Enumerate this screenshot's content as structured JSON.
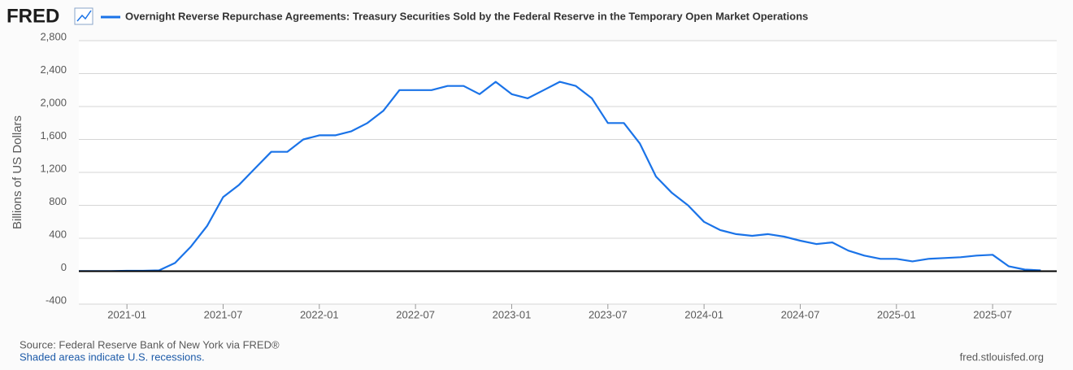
{
  "logo": "FRED",
  "chart_data": {
    "type": "line",
    "series": [
      {
        "name": "Overnight Reverse Repurchase Agreements: Treasury Securities Sold by the Federal Reserve in the Temporary Open Market Operations",
        "color": "#1a73e8",
        "x": [
          "2020-10",
          "2020-11",
          "2020-12",
          "2021-01",
          "2021-02",
          "2021-03",
          "2021-04",
          "2021-05",
          "2021-06",
          "2021-07",
          "2021-08",
          "2021-09",
          "2021-10",
          "2021-11",
          "2021-12",
          "2022-01",
          "2022-02",
          "2022-03",
          "2022-04",
          "2022-05",
          "2022-06",
          "2022-07",
          "2022-08",
          "2022-09",
          "2022-10",
          "2022-11",
          "2022-12",
          "2023-01",
          "2023-02",
          "2023-03",
          "2023-04",
          "2023-05",
          "2023-06",
          "2023-07",
          "2023-08",
          "2023-09",
          "2023-10",
          "2023-11",
          "2023-12",
          "2024-01",
          "2024-02",
          "2024-03",
          "2024-04",
          "2024-05",
          "2024-06",
          "2024-07",
          "2024-08",
          "2024-09",
          "2024-10",
          "2024-11",
          "2024-12",
          "2025-01",
          "2025-02",
          "2025-03",
          "2025-04",
          "2025-05",
          "2025-06",
          "2025-07",
          "2025-08",
          "2025-09",
          "2025-10"
        ],
        "values": [
          1,
          1,
          2,
          5,
          5,
          10,
          100,
          300,
          550,
          900,
          1050,
          1250,
          1450,
          1450,
          1600,
          1650,
          1650,
          1700,
          1800,
          1950,
          2200,
          2200,
          2200,
          2250,
          2250,
          2150,
          2300,
          2150,
          2100,
          2200,
          2300,
          2250,
          2100,
          1800,
          1800,
          1550,
          1150,
          950,
          800,
          600,
          500,
          450,
          430,
          450,
          420,
          370,
          330,
          350,
          250,
          190,
          150,
          150,
          120,
          150,
          160,
          170,
          190,
          200,
          60,
          20,
          10
        ]
      }
    ],
    "xlim": [
      "2020-10",
      "2025-11"
    ],
    "xticks": [
      "2021-01",
      "2021-07",
      "2022-01",
      "2022-07",
      "2023-01",
      "2023-07",
      "2024-01",
      "2024-07",
      "2025-01",
      "2025-07"
    ],
    "ylim": [
      -400,
      2800
    ],
    "yticks": [
      -400,
      0,
      {
        "value": 400,
        "label": "400"
      },
      {
        "value": 800,
        "label": "800"
      },
      {
        "value": 1200,
        "label": "1,200"
      },
      {
        "value": 1600,
        "label": "1,600"
      },
      {
        "value": 2000,
        "label": "2,000"
      },
      {
        "value": 2400,
        "label": "2,400"
      },
      {
        "value": 2800,
        "label": "2,800"
      }
    ],
    "ylabel": "Billions of US Dollars",
    "grid": true,
    "source": "Source: Federal Reserve Bank of New York via FRED®",
    "note": "Shaded areas indicate U.S. recessions.",
    "site": "fred.stlouisfed.org"
  }
}
